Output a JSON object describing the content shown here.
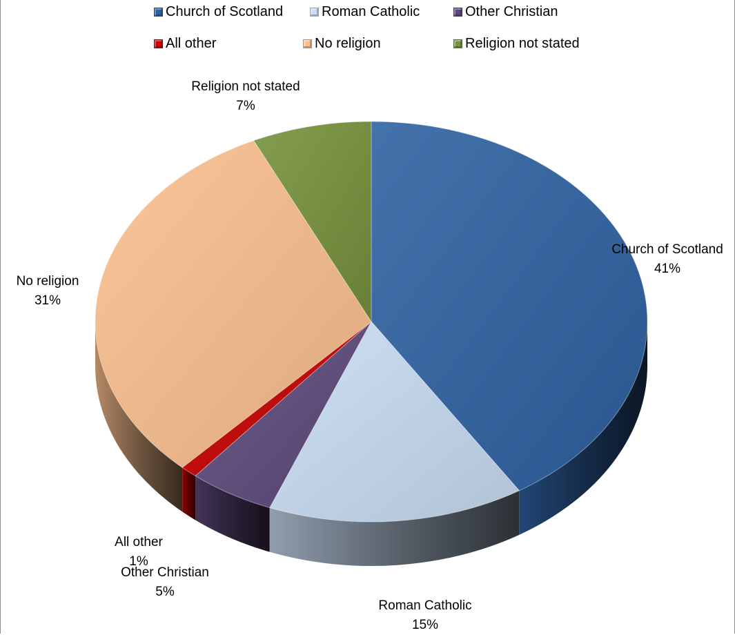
{
  "chart_data": {
    "type": "pie",
    "title": "",
    "categories": [
      "Church of Scotland",
      "Roman Catholic",
      "Other Christian",
      "All other",
      "No religion",
      "Religion not stated"
    ],
    "values": [
      41,
      15,
      5,
      1,
      31,
      7
    ],
    "percent_labels": [
      "41%",
      "15%",
      "5%",
      "1%",
      "31%",
      "7%"
    ],
    "colors": [
      "#2f62a2",
      "#c9dcf3",
      "#5e4a7c",
      "#c70000",
      "#fac08e",
      "#76923c"
    ],
    "legend_position": "top",
    "style": "3d-pie"
  }
}
